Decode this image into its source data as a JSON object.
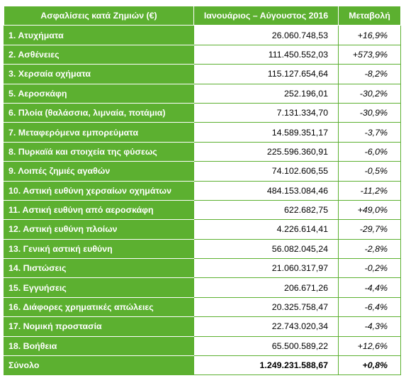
{
  "header": {
    "name": "Ασφαλίσεις κατά Ζημιών (€)",
    "period": "Ιανουάριος – Αύγουστος 2016",
    "change": "Μεταβολή"
  },
  "rows": [
    {
      "name": "1. Ατυχήματα",
      "value": "26.060.748,53",
      "change": "+16,9%"
    },
    {
      "name": "2. Ασθένειες",
      "value": "111.450.552,03",
      "change": "+573,9%"
    },
    {
      "name": "3. Χερσαία οχήματα",
      "value": "115.127.654,64",
      "change": "-8,2%"
    },
    {
      "name": "5. Αεροσκάφη",
      "value": "252.196,01",
      "change": "-30,2%"
    },
    {
      "name": "6. Πλοία (θαλάσσια, λιμναία, ποτάμια)",
      "value": "7.131.334,70",
      "change": "-30,9%"
    },
    {
      "name": "7. Μεταφερόμενα εμπορεύματα",
      "value": "14.589.351,17",
      "change": "-3,7%"
    },
    {
      "name": "8. Πυρκαϊά και στοιχεία της φύσεως",
      "value": "225.596.360,91",
      "change": "-6,0%"
    },
    {
      "name": "9. Λοιπές ζημιές αγαθών",
      "value": "74.102.606,55",
      "change": "-0,5%"
    },
    {
      "name": "10. Αστική ευθύνη χερσαίων οχημάτων",
      "value": "484.153.084,46",
      "change": "-11,2%"
    },
    {
      "name": "11. Αστική ευθύνη από αεροσκάφη",
      "value": "622.682,75",
      "change": "+49,0%"
    },
    {
      "name": "12. Αστική ευθύνη πλοίων",
      "value": "4.226.614,41",
      "change": "-29,7%"
    },
    {
      "name": "13. Γενική αστική ευθύνη",
      "value": "56.082.045,24",
      "change": "-2,8%"
    },
    {
      "name": "14. Πιστώσεις",
      "value": "21.060.317,97",
      "change": "-0,2%"
    },
    {
      "name": "15. Εγγυήσεις",
      "value": "206.671,26",
      "change": "-4,4%"
    },
    {
      "name": "16. Διάφορες χρηματικές απώλειες",
      "value": "20.325.758,47",
      "change": "-6,4%"
    },
    {
      "name": "17. Νομική προστασία",
      "value": "22.743.020,34",
      "change": "-4,3%"
    },
    {
      "name": "18. Βοήθεια",
      "value": "65.500.589,22",
      "change": "+12,6%"
    }
  ],
  "total": {
    "name": "Σύνολο",
    "value": "1.249.231.588,67",
    "change": "+0,8%"
  },
  "colors": {
    "header_green": "#5cb030",
    "text_white": "#ffffff",
    "text_black": "#000000"
  }
}
